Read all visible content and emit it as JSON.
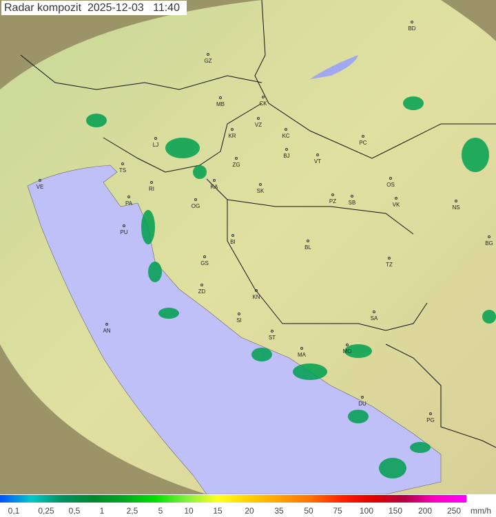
{
  "title": "Radar kompozit  2025-12-03   11:40",
  "cities": [
    "BD",
    "GZ",
    "MB",
    "CK",
    "VZ",
    "KR",
    "KC",
    "PC",
    "LJ",
    "ZG",
    "BJ",
    "VT",
    "TS",
    "VE",
    "KA",
    "SK",
    "OS",
    "NS",
    "RI",
    "PA",
    "OG",
    "PZ",
    "SB",
    "VK",
    "PU",
    "BI",
    "BL",
    "BG",
    "GS",
    "TZ",
    "ZD",
    "KN",
    "SA",
    "SI",
    "AN",
    "ST",
    "MA",
    "MO",
    "DU",
    "PG"
  ],
  "legend": {
    "unit": "mm/h",
    "labels": [
      "0,1",
      "0,25",
      "0,5",
      "1",
      "2,5",
      "5",
      "10",
      "15",
      "20",
      "35",
      "50",
      "75",
      "100",
      "150",
      "200",
      "250"
    ],
    "colors": [
      "#0050ff",
      "#00c8c8",
      "#009060",
      "#008830",
      "#00a820",
      "#00e000",
      "#80f040",
      "#ffff20",
      "#ffd000",
      "#ffa000",
      "#ff7000",
      "#ff2000",
      "#e00000",
      "#b00040",
      "#ff00c0",
      "#ff00ff"
    ]
  },
  "colors": {
    "sea": "#c0c0f8",
    "land": "#d8e8a8",
    "outside": "#8a8a60",
    "precip": "#00a050"
  }
}
